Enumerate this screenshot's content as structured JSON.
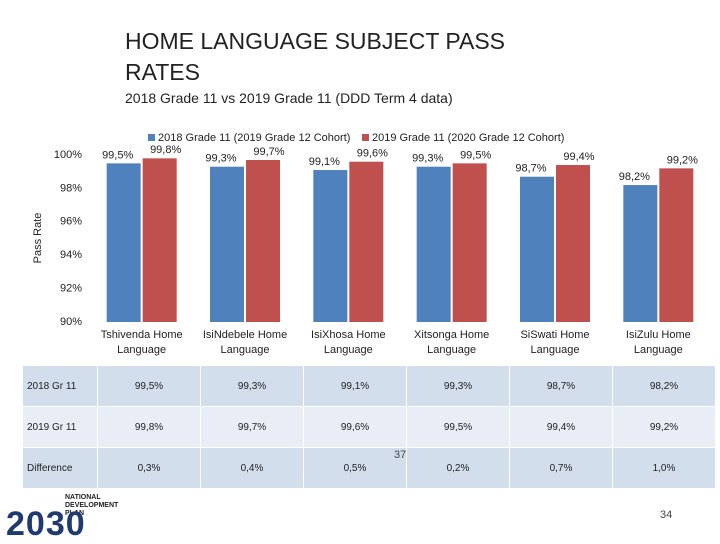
{
  "chart_data": {
    "type": "bar",
    "title": "HOME LANGUAGE SUBJECT PASS RATES",
    "subtitle": "2018 Grade 11 vs 2019 Grade 11 (DDD Term 4 data)",
    "y_label": "Pass Rate",
    "categories": [
      "Tshivenda Home Language",
      "IsiNdebele Home Language",
      "IsiXhosa Home Language",
      "Xitsonga Home Language",
      "SiSwati Home Language",
      "IsiZulu Home Language"
    ],
    "series": [
      {
        "name": "2018 Grade 11 (2019 Grade 12 Cohort)",
        "color": "#4f81bd",
        "values": [
          99.5,
          99.3,
          99.1,
          99.3,
          98.7,
          98.2
        ],
        "value_labels": [
          "99,5%",
          "99,3%",
          "99,1%",
          "99,3%",
          "98,7%",
          "98,2%"
        ]
      },
      {
        "name": "2019 Grade 11 (2020 Grade 12 Cohort)",
        "color": "#c0504d",
        "values": [
          99.8,
          99.7,
          99.6,
          99.5,
          99.4,
          99.2
        ],
        "value_labels": [
          "99,8%",
          "99,7%",
          "99,6%",
          "99,5%",
          "99,4%",
          "99,2%"
        ]
      }
    ],
    "ylim": [
      90,
      100
    ],
    "yticks": [
      {
        "value": 90,
        "label": "90%"
      },
      {
        "value": 92,
        "label": "92%"
      },
      {
        "value": 94,
        "label": "94%"
      },
      {
        "value": 96,
        "label": "96%"
      },
      {
        "value": 98,
        "label": "98%"
      },
      {
        "value": 100,
        "label": "100%"
      }
    ],
    "grid": false
  },
  "table": {
    "rows": [
      [
        "2018 Gr 11",
        "99,5%",
        "99,3%",
        "99,1%",
        "99,3%",
        "98,7%",
        "98,2%"
      ],
      [
        "2019 Gr 11",
        "99,8%",
        "99,7%",
        "99,6%",
        "99,5%",
        "99,4%",
        "99,2%"
      ],
      [
        "Difference",
        "0,3%",
        "0,4%",
        "0,5%",
        "0,2%",
        "0,7%",
        "1,0%"
      ]
    ]
  },
  "marker": "37",
  "page_number": "34",
  "logo": {
    "text": "NATIONAL DEVELOPMENT PLAN",
    "year": "2030"
  }
}
